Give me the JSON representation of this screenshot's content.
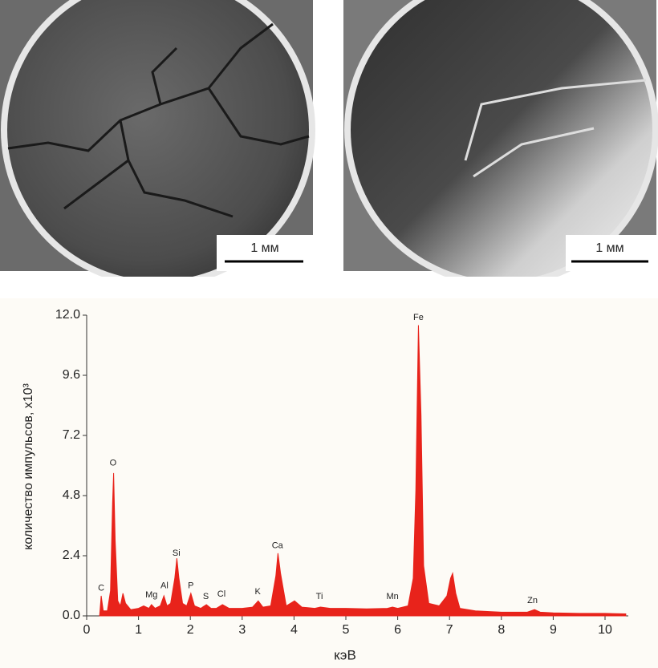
{
  "images": [
    {
      "scale_bar": "1 мм"
    },
    {
      "scale_bar": "1 мм"
    }
  ],
  "chart_data": {
    "type": "area",
    "x_label": "кэВ",
    "y_label": "количество импульсов, x10³",
    "color": "#e8231b",
    "x": [
      0.25,
      0.28,
      0.32,
      0.4,
      0.46,
      0.5,
      0.52,
      0.55,
      0.6,
      0.65,
      0.7,
      0.75,
      0.85,
      1.0,
      1.1,
      1.2,
      1.25,
      1.32,
      1.42,
      1.49,
      1.55,
      1.62,
      1.7,
      1.74,
      1.78,
      1.85,
      1.93,
      2.01,
      2.08,
      2.2,
      2.31,
      2.4,
      2.5,
      2.62,
      2.75,
      3.0,
      3.2,
      3.31,
      3.4,
      3.55,
      3.65,
      3.69,
      3.74,
      3.85,
      4.01,
      4.15,
      4.4,
      4.51,
      4.7,
      5.0,
      5.4,
      5.8,
      5.9,
      6.0,
      6.2,
      6.3,
      6.35,
      6.4,
      6.45,
      6.5,
      6.6,
      6.8,
      6.95,
      7.02,
      7.06,
      7.12,
      7.2,
      7.5,
      8.0,
      8.5,
      8.64,
      8.75,
      9.0,
      9.5,
      10.0,
      10.4
    ],
    "values": [
      0.0,
      0.8,
      0.2,
      0.2,
      1.0,
      4.5,
      5.7,
      3.0,
      0.6,
      0.4,
      0.9,
      0.5,
      0.25,
      0.3,
      0.4,
      0.3,
      0.45,
      0.3,
      0.4,
      0.8,
      0.4,
      0.5,
      1.5,
      2.3,
      1.5,
      0.5,
      0.4,
      0.9,
      0.4,
      0.3,
      0.45,
      0.3,
      0.3,
      0.45,
      0.3,
      0.3,
      0.35,
      0.6,
      0.35,
      0.4,
      1.6,
      2.5,
      1.7,
      0.4,
      0.6,
      0.35,
      0.3,
      0.35,
      0.3,
      0.3,
      0.28,
      0.3,
      0.35,
      0.3,
      0.4,
      1.5,
      5.0,
      11.6,
      8.0,
      2.0,
      0.5,
      0.4,
      0.8,
      1.5,
      1.7,
      0.9,
      0.3,
      0.2,
      0.15,
      0.15,
      0.25,
      0.15,
      0.12,
      0.1,
      0.1,
      0.08
    ],
    "annotations": [
      {
        "text": "C",
        "x": 0.28,
        "y": 1.1
      },
      {
        "text": "O",
        "x": 0.51,
        "y": 6.1
      },
      {
        "text": "Mg",
        "x": 1.25,
        "y": 0.83
      },
      {
        "text": "Al",
        "x": 1.5,
        "y": 1.2
      },
      {
        "text": "Si",
        "x": 1.73,
        "y": 2.5
      },
      {
        "text": "P",
        "x": 2.01,
        "y": 1.2
      },
      {
        "text": "S",
        "x": 2.3,
        "y": 0.77
      },
      {
        "text": "Cl",
        "x": 2.6,
        "y": 0.86
      },
      {
        "text": "K",
        "x": 3.3,
        "y": 0.96
      },
      {
        "text": "Ca",
        "x": 3.68,
        "y": 2.8
      },
      {
        "text": "Ti",
        "x": 4.49,
        "y": 0.77
      },
      {
        "text": "Mn",
        "x": 5.9,
        "y": 0.77
      },
      {
        "text": "Fe",
        "x": 6.4,
        "y": 11.9
      },
      {
        "text": "Zn",
        "x": 8.6,
        "y": 0.6
      }
    ],
    "xlim": [
      0,
      10.5
    ],
    "xticks": [
      0,
      1,
      2,
      3,
      4,
      5,
      6,
      7,
      8,
      9,
      10
    ],
    "ylim": [
      0,
      12
    ],
    "yticks": [
      {
        "value": 0,
        "label": "0.0"
      },
      2.4,
      4.8,
      7.2,
      9.6,
      {
        "value": 12,
        "label": "12.0"
      }
    ]
  }
}
